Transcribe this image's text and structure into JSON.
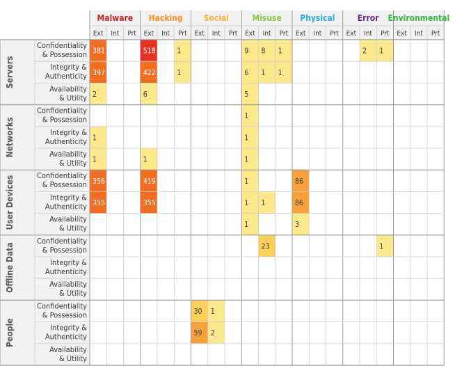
{
  "chart_data": {
    "type": "heatmap",
    "title": "",
    "categories": [
      {
        "name": "Malware",
        "color": "#c1272d"
      },
      {
        "name": "Hacking",
        "color": "#f7931e"
      },
      {
        "name": "Social",
        "color": "#fbb03b"
      },
      {
        "name": "Misuse",
        "color": "#8cc63f"
      },
      {
        "name": "Physical",
        "color": "#29abe2"
      },
      {
        "name": "Error",
        "color": "#662d91"
      },
      {
        "name": "Environmental",
        "color": "#39b54a"
      }
    ],
    "subcolumns": [
      "Ext",
      "Int",
      "Prt"
    ],
    "asset_groups": [
      {
        "name": "Servers",
        "rows": [
          {
            "label1": "Confidentiality",
            "label2": "& Possession",
            "values": [
              381,
              null,
              null,
              518,
              null,
              1,
              null,
              null,
              null,
              9,
              8,
              1,
              null,
              null,
              null,
              null,
              2,
              1,
              null,
              null,
              null
            ]
          },
          {
            "label1": "Integrity &",
            "label2": "Authenticity",
            "values": [
              397,
              null,
              null,
              422,
              null,
              1,
              null,
              null,
              null,
              6,
              1,
              1,
              null,
              null,
              null,
              null,
              null,
              null,
              null,
              null,
              null
            ]
          },
          {
            "label1": "Availability",
            "label2": "& Utility",
            "values": [
              2,
              null,
              null,
              6,
              null,
              null,
              null,
              null,
              null,
              5,
              null,
              null,
              null,
              null,
              null,
              null,
              null,
              null,
              null,
              null,
              null
            ]
          }
        ]
      },
      {
        "name": "Networks",
        "rows": [
          {
            "label1": "Confidentiality",
            "label2": "& Possession",
            "values": [
              null,
              null,
              null,
              null,
              null,
              null,
              null,
              null,
              null,
              1,
              null,
              null,
              null,
              null,
              null,
              null,
              null,
              null,
              null,
              null,
              null
            ]
          },
          {
            "label1": "Integrity &",
            "label2": "Authenticity",
            "values": [
              1,
              null,
              null,
              null,
              null,
              null,
              null,
              null,
              null,
              1,
              null,
              null,
              null,
              null,
              null,
              null,
              null,
              null,
              null,
              null,
              null
            ]
          },
          {
            "label1": "Availability",
            "label2": "& Utility",
            "values": [
              1,
              null,
              null,
              1,
              null,
              null,
              null,
              null,
              null,
              1,
              null,
              null,
              null,
              null,
              null,
              null,
              null,
              null,
              null,
              null,
              null
            ]
          }
        ]
      },
      {
        "name": "User Devices",
        "rows": [
          {
            "label1": "Confidentiality",
            "label2": "& Possession",
            "values": [
              356,
              null,
              null,
              419,
              null,
              null,
              null,
              null,
              null,
              1,
              null,
              null,
              86,
              null,
              null,
              null,
              null,
              null,
              null,
              null,
              null
            ]
          },
          {
            "label1": "Integrity &",
            "label2": "Authenticity",
            "values": [
              355,
              null,
              null,
              355,
              null,
              null,
              null,
              null,
              null,
              1,
              1,
              null,
              86,
              null,
              null,
              null,
              null,
              null,
              null,
              null,
              null
            ]
          },
          {
            "label1": "Availability",
            "label2": "& Utility",
            "values": [
              null,
              null,
              null,
              null,
              null,
              null,
              null,
              null,
              null,
              1,
              null,
              null,
              3,
              null,
              null,
              null,
              null,
              null,
              null,
              null,
              null
            ]
          }
        ]
      },
      {
        "name": "Offline Data",
        "rows": [
          {
            "label1": "Confidentiality",
            "label2": "& Possession",
            "values": [
              null,
              null,
              null,
              null,
              null,
              null,
              null,
              null,
              null,
              null,
              23,
              null,
              null,
              null,
              null,
              null,
              null,
              1,
              null,
              null,
              null
            ]
          },
          {
            "label1": "Integrity &",
            "label2": "Authenticity",
            "values": [
              null,
              null,
              null,
              null,
              null,
              null,
              null,
              null,
              null,
              null,
              null,
              null,
              null,
              null,
              null,
              null,
              null,
              null,
              null,
              null,
              null
            ]
          },
          {
            "label1": "Availability",
            "label2": "& Utility",
            "values": [
              null,
              null,
              null,
              null,
              null,
              null,
              null,
              null,
              null,
              null,
              null,
              null,
              null,
              null,
              null,
              null,
              null,
              null,
              null,
              null,
              null
            ]
          }
        ]
      },
      {
        "name": "People",
        "rows": [
          {
            "label1": "Confidentiality",
            "label2": "& Possession",
            "values": [
              null,
              null,
              null,
              null,
              null,
              null,
              30,
              1,
              null,
              null,
              null,
              null,
              null,
              null,
              null,
              null,
              null,
              null,
              null,
              null,
              null
            ]
          },
          {
            "label1": "Integrity &",
            "label2": "Authenticity",
            "values": [
              null,
              null,
              null,
              null,
              null,
              null,
              59,
              2,
              null,
              null,
              null,
              null,
              null,
              null,
              null,
              null,
              null,
              null,
              null,
              null,
              null
            ]
          },
          {
            "label1": "Availability",
            "label2": "& Utility",
            "values": [
              null,
              null,
              null,
              null,
              null,
              null,
              null,
              null,
              null,
              null,
              null,
              null,
              null,
              null,
              null,
              null,
              null,
              null,
              null,
              null,
              null
            ]
          }
        ]
      }
    ],
    "color_scale": {
      "levels": [
        {
          "min": 500,
          "color": "#e63125",
          "text": "#ffffff"
        },
        {
          "min": 300,
          "color": "#f36d21",
          "text": "#ffffff"
        },
        {
          "min": 50,
          "color": "#f7a13b",
          "text": "#404040"
        },
        {
          "min": 10,
          "color": "#fbd056",
          "text": "#404040"
        },
        {
          "min": 1,
          "color": "#fde98c",
          "text": "#404040"
        }
      ]
    },
    "colors": {
      "header_bg": "#f2f2f2",
      "grid": "#cfcfcf",
      "group_line": "#9a9a9a",
      "text": "#3a3a3a"
    }
  }
}
